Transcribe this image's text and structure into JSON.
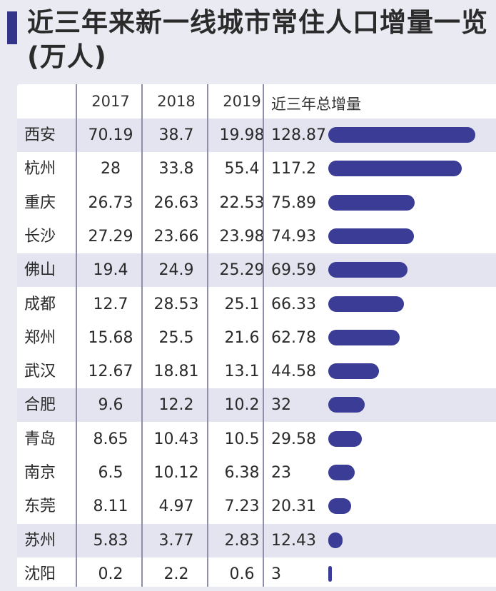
{
  "title_line1": "近三年来新一线城市常住人口增量一览",
  "title_line2": "(万人)",
  "chart_data": {
    "type": "table",
    "columns": [
      "",
      "2017",
      "2018",
      "2019",
      "近三年总增量"
    ],
    "rows": [
      {
        "city": "西安",
        "y2017": "70.19",
        "y2018": "38.7",
        "y2019": "19.98",
        "total": "128.87",
        "total_value": 128.87,
        "shaded": true
      },
      {
        "city": "杭州",
        "y2017": "28",
        "y2018": "33.8",
        "y2019": "55.4",
        "total": "117.2",
        "total_value": 117.2,
        "shaded": false
      },
      {
        "city": "重庆",
        "y2017": "26.73",
        "y2018": "26.63",
        "y2019": "22.53",
        "total": "75.89",
        "total_value": 75.89,
        "shaded": false
      },
      {
        "city": "长沙",
        "y2017": "27.29",
        "y2018": "23.66",
        "y2019": "23.98",
        "total": "74.93",
        "total_value": 74.93,
        "shaded": false
      },
      {
        "city": "佛山",
        "y2017": "19.4",
        "y2018": "24.9",
        "y2019": "25.29",
        "total": "69.59",
        "total_value": 69.59,
        "shaded": true
      },
      {
        "city": "成都",
        "y2017": "12.7",
        "y2018": "28.53",
        "y2019": "25.1",
        "total": "66.33",
        "total_value": 66.33,
        "shaded": false
      },
      {
        "city": "郑州",
        "y2017": "15.68",
        "y2018": "25.5",
        "y2019": "21.6",
        "total": "62.78",
        "total_value": 62.78,
        "shaded": false
      },
      {
        "city": "武汉",
        "y2017": "12.67",
        "y2018": "18.81",
        "y2019": "13.1",
        "total": "44.58",
        "total_value": 44.58,
        "shaded": false
      },
      {
        "city": "合肥",
        "y2017": "9.6",
        "y2018": "12.2",
        "y2019": "10.2",
        "total": "32",
        "total_value": 32,
        "shaded": true
      },
      {
        "city": "青岛",
        "y2017": "8.65",
        "y2018": "10.43",
        "y2019": "10.5",
        "total": "29.58",
        "total_value": 29.58,
        "shaded": false
      },
      {
        "city": "南京",
        "y2017": "6.5",
        "y2018": "10.12",
        "y2019": "6.38",
        "total": "23",
        "total_value": 23,
        "shaded": false
      },
      {
        "city": "东莞",
        "y2017": "8.11",
        "y2018": "4.97",
        "y2019": "7.23",
        "total": "20.31",
        "total_value": 20.31,
        "shaded": false
      },
      {
        "city": "苏州",
        "y2017": "5.83",
        "y2018": "3.77",
        "y2019": "2.83",
        "total": "12.43",
        "total_value": 12.43,
        "shaded": true
      },
      {
        "city": "沈阳",
        "y2017": "0.2",
        "y2018": "2.2",
        "y2019": "0.6",
        "total": "3",
        "total_value": 3,
        "shaded": false
      }
    ],
    "bar_max": 128.87,
    "bar_color": "#3a3c95",
    "shade_color": "#e3e4ef"
  }
}
